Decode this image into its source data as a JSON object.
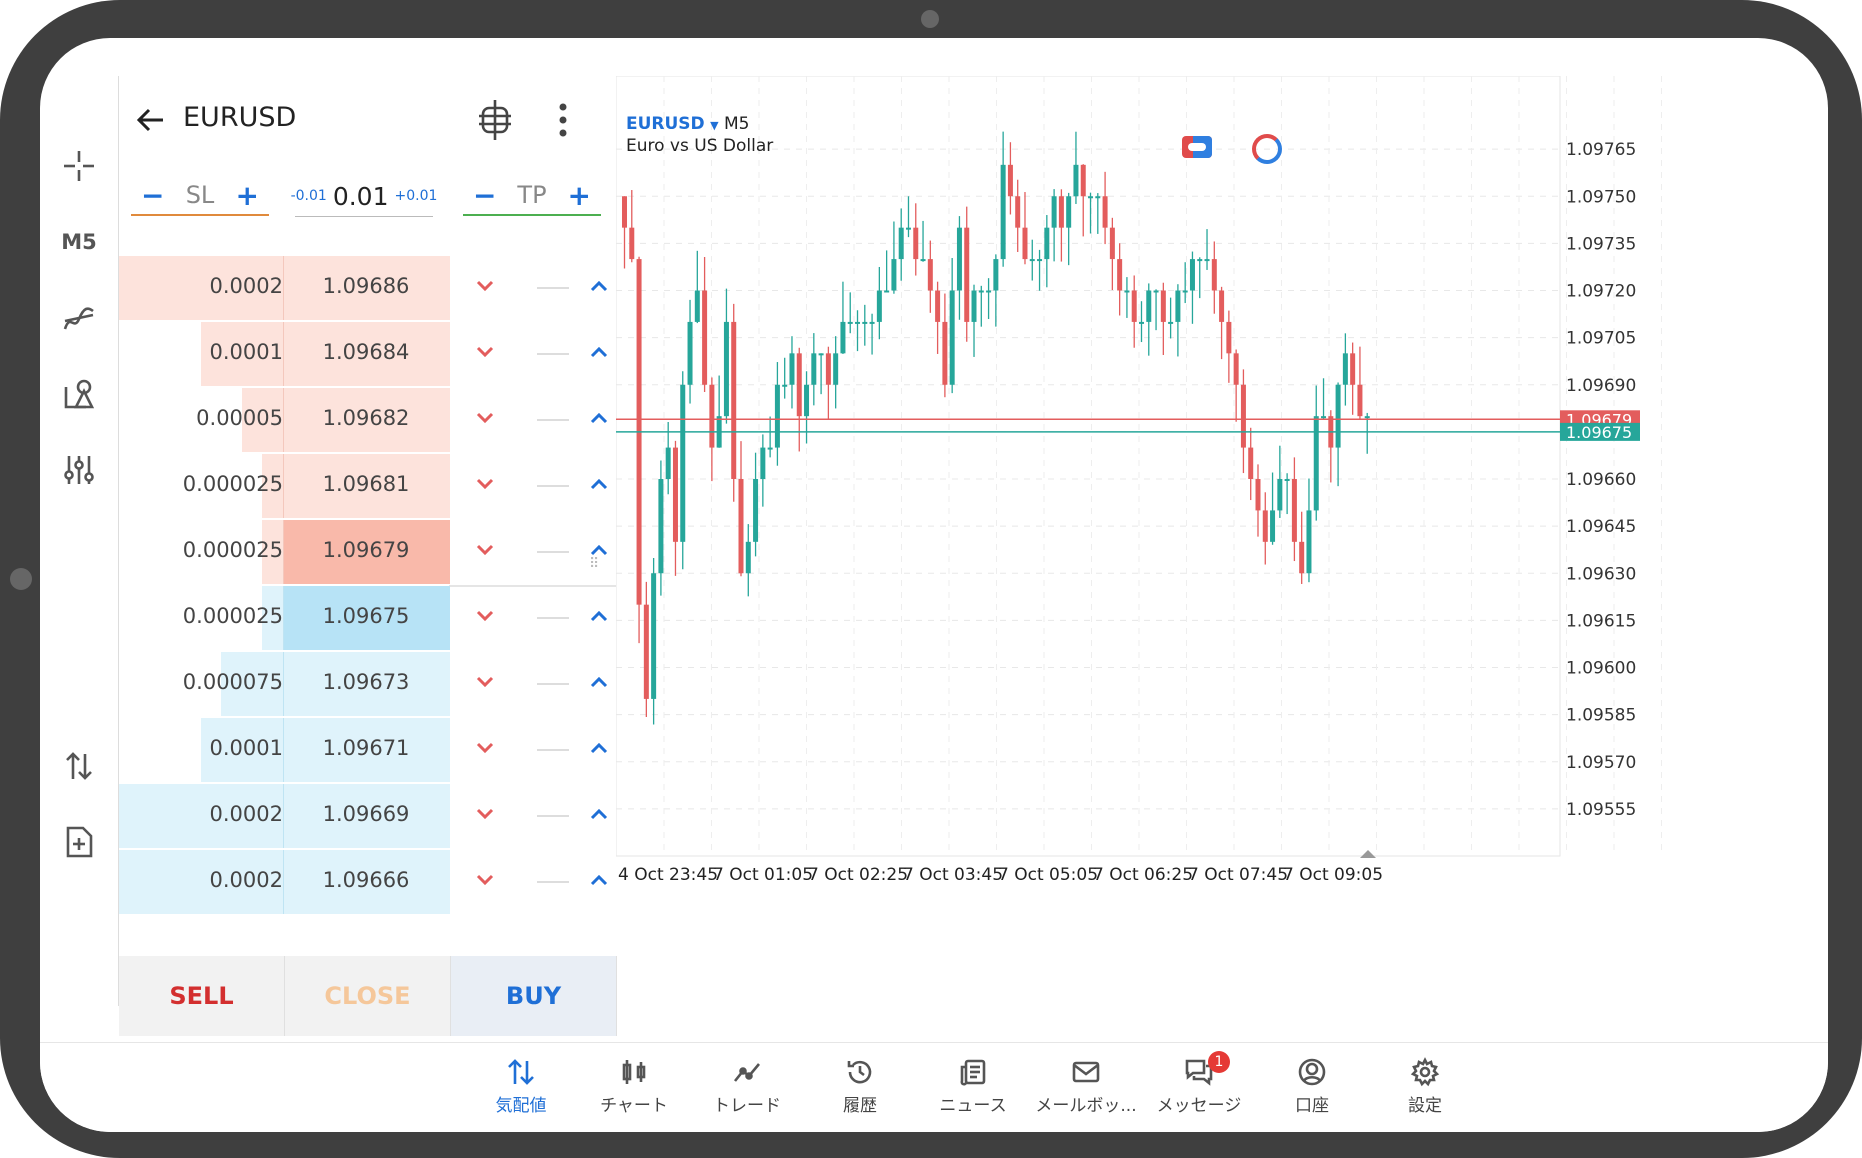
{
  "symbol": {
    "name": "EURUSD",
    "timeframe": "M5",
    "description": "Euro vs US Dollar"
  },
  "toolbar": {
    "timeframe_label": "M5"
  },
  "order": {
    "sl_label": "SL",
    "tp_label": "TP",
    "minus": "−",
    "plus": "+",
    "volume": "0.01",
    "volume_minus": "-0.01",
    "volume_plus": "+0.01"
  },
  "depth": [
    {
      "volume": "0.0002",
      "price": "1.09686",
      "side": "ask",
      "fraction": 1.0
    },
    {
      "volume": "0.0001",
      "price": "1.09684",
      "side": "ask",
      "fraction": 0.5
    },
    {
      "volume": "0.00005",
      "price": "1.09682",
      "side": "ask",
      "fraction": 0.25
    },
    {
      "volume": "0.000025",
      "price": "1.09681",
      "side": "ask",
      "fraction": 0.125
    },
    {
      "volume": "0.000025",
      "price": "1.09679",
      "side": "ask",
      "fraction": 0.125
    },
    {
      "volume": "0.000025",
      "price": "1.09675",
      "side": "bid",
      "fraction": 0.125
    },
    {
      "volume": "0.000075",
      "price": "1.09673",
      "side": "bid",
      "fraction": 0.375
    },
    {
      "volume": "0.0001",
      "price": "1.09671",
      "side": "bid",
      "fraction": 0.5
    },
    {
      "volume": "0.0002",
      "price": "1.09669",
      "side": "bid",
      "fraction": 1.0
    },
    {
      "volume": "0.0002",
      "price": "1.09666",
      "side": "bid",
      "fraction": 1.0
    }
  ],
  "buttons": {
    "sell": "SELL",
    "close": "CLOSE",
    "buy": "BUY"
  },
  "colors": {
    "sell": "#d32f2f",
    "buy": "#1f6fd6",
    "close": "#f5c79a",
    "bear": "#e35d5d",
    "bull": "#26a69a",
    "ask_bg": "#fde3dc",
    "bid_bg": "#dff3fb"
  },
  "chart_data": {
    "type": "candlestick",
    "symbol": "EURUSD",
    "timeframe": "M5",
    "ylim": [
      1.0954,
      1.0978
    ],
    "y_ticks": [
      "1.09765",
      "1.09750",
      "1.09735",
      "1.09720",
      "1.09705",
      "1.09690",
      "1.09675",
      "1.09660",
      "1.09645",
      "1.09630",
      "1.09615",
      "1.09600",
      "1.09585",
      "1.09570",
      "1.09555"
    ],
    "x_ticks": [
      "4 Oct 23:45",
      "7 Oct 01:05",
      "7 Oct 02:25",
      "7 Oct 03:45",
      "7 Oct 05:05",
      "7 Oct 06:25",
      "7 Oct 07:45",
      "7 Oct 09:05"
    ],
    "ask_line": 1.09679,
    "bid_line": 1.09675,
    "ask_label": "1.09679",
    "bid_label": "1.09675",
    "closes": [
      1.0974,
      1.0973,
      1.0962,
      1.0959,
      1.0963,
      1.0966,
      1.0967,
      1.0964,
      1.0969,
      1.0971,
      1.0972,
      1.0969,
      1.0967,
      1.0968,
      1.0971,
      1.0966,
      1.0963,
      1.0964,
      1.0966,
      1.0967,
      1.0967,
      1.0969,
      1.0969,
      1.097,
      1.0968,
      1.0969,
      1.097,
      1.097,
      1.0969,
      1.097,
      1.0971,
      1.0971,
      1.0971,
      1.0971,
      1.0971,
      1.0972,
      1.0972,
      1.0973,
      1.0974,
      1.0974,
      1.0973,
      1.0973,
      1.0972,
      1.0971,
      1.0969,
      1.0972,
      1.0974,
      1.0971,
      1.0972,
      1.0972,
      1.0972,
      1.0973,
      1.0976,
      1.0975,
      1.0974,
      1.0973,
      1.0973,
      1.0973,
      1.0974,
      1.0975,
      1.0974,
      1.0975,
      1.0976,
      1.0975,
      1.0975,
      1.0975,
      1.0974,
      1.0973,
      1.0972,
      1.0972,
      1.0971,
      1.0971,
      1.0972,
      1.0972,
      1.0971,
      1.0971,
      1.0972,
      1.0972,
      1.0973,
      1.0973,
      1.0973,
      1.0972,
      1.0971,
      1.097,
      1.0969,
      1.0967,
      1.0966,
      1.0965,
      1.0964,
      1.0965,
      1.0966,
      1.0966,
      1.0964,
      1.0963,
      1.0965,
      1.0968,
      1.0968,
      1.0967,
      1.0969,
      1.097,
      1.0969,
      1.0968,
      1.0968
    ]
  },
  "nav": [
    {
      "label": "気配値",
      "icon": "quotes-icon",
      "active": true
    },
    {
      "label": "チャート",
      "icon": "chart-icon",
      "active": false
    },
    {
      "label": "トレード",
      "icon": "trade-icon",
      "active": false
    },
    {
      "label": "履歴",
      "icon": "history-icon",
      "active": false
    },
    {
      "label": "ニュース",
      "icon": "news-icon",
      "active": false
    },
    {
      "label": "メールボッ...",
      "icon": "mail-icon",
      "active": false
    },
    {
      "label": "メッセージ",
      "icon": "messages-icon",
      "active": false,
      "badge": "1"
    },
    {
      "label": "口座",
      "icon": "account-icon",
      "active": false
    },
    {
      "label": "設定",
      "icon": "settings-icon",
      "active": false
    }
  ]
}
